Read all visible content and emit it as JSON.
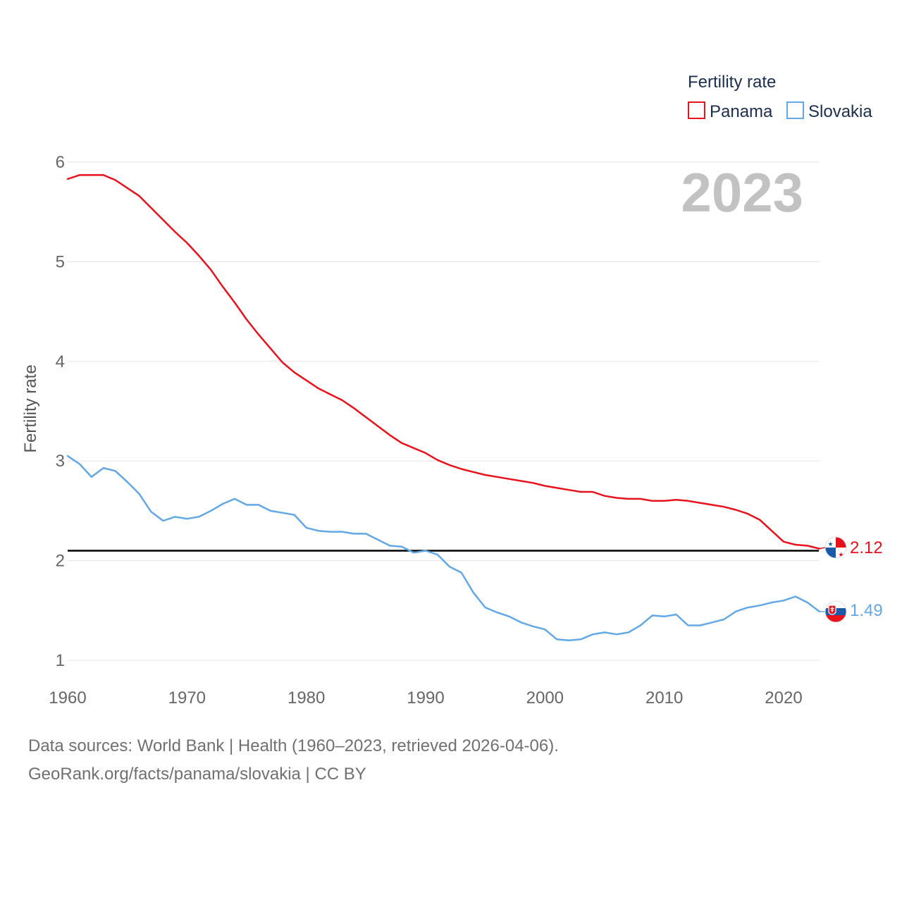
{
  "chart_data": {
    "type": "line",
    "ylabel": "Fertility rate",
    "ylim": [
      1,
      6.3
    ],
    "yticks": [
      1,
      2,
      3,
      4,
      5,
      6
    ],
    "xlim": [
      1960,
      2023
    ],
    "xticks": [
      1960,
      1970,
      1980,
      1990,
      2000,
      2010,
      2020
    ],
    "reference_line": 2.1,
    "year": "2023",
    "legend": {
      "title": "Fertility rate",
      "placement": "top-right"
    },
    "series": [
      {
        "name": "Panama",
        "color": "#e8121c",
        "end_label": "2.12",
        "flag_icon": "panama-flag-icon",
        "x": [
          1960,
          1961,
          1962,
          1963,
          1964,
          1965,
          1966,
          1967,
          1968,
          1969,
          1970,
          1971,
          1972,
          1973,
          1974,
          1975,
          1976,
          1977,
          1978,
          1979,
          1980,
          1981,
          1982,
          1983,
          1984,
          1985,
          1986,
          1987,
          1988,
          1989,
          1990,
          1991,
          1992,
          1993,
          1994,
          1995,
          1996,
          1997,
          1998,
          1999,
          2000,
          2001,
          2002,
          2003,
          2004,
          2005,
          2006,
          2007,
          2008,
          2009,
          2010,
          2011,
          2012,
          2013,
          2014,
          2015,
          2016,
          2017,
          2018,
          2019,
          2020,
          2021,
          2022,
          2023
        ],
        "values": [
          5.83,
          5.87,
          5.87,
          5.87,
          5.82,
          5.74,
          5.66,
          5.54,
          5.42,
          5.3,
          5.19,
          5.06,
          4.92,
          4.75,
          4.59,
          4.42,
          4.27,
          4.13,
          3.99,
          3.89,
          3.81,
          3.73,
          3.67,
          3.61,
          3.53,
          3.44,
          3.35,
          3.26,
          3.18,
          3.13,
          3.08,
          3.01,
          2.96,
          2.92,
          2.89,
          2.86,
          2.84,
          2.82,
          2.8,
          2.78,
          2.75,
          2.73,
          2.71,
          2.69,
          2.69,
          2.65,
          2.63,
          2.62,
          2.62,
          2.6,
          2.6,
          2.61,
          2.6,
          2.58,
          2.56,
          2.54,
          2.51,
          2.47,
          2.41,
          2.3,
          2.19,
          2.16,
          2.15,
          2.12
        ]
      },
      {
        "name": "Slovakia",
        "color": "#63a8e6",
        "end_label": "1.49",
        "flag_icon": "slovakia-flag-icon",
        "x": [
          1960,
          1961,
          1962,
          1963,
          1964,
          1965,
          1966,
          1967,
          1968,
          1969,
          1970,
          1971,
          1972,
          1973,
          1974,
          1975,
          1976,
          1977,
          1978,
          1979,
          1980,
          1981,
          1982,
          1983,
          1984,
          1985,
          1986,
          1987,
          1988,
          1989,
          1990,
          1991,
          1992,
          1993,
          1994,
          1995,
          1996,
          1997,
          1998,
          1999,
          2000,
          2001,
          2002,
          2003,
          2004,
          2005,
          2006,
          2007,
          2008,
          2009,
          2010,
          2011,
          2012,
          2013,
          2014,
          2015,
          2016,
          2017,
          2018,
          2019,
          2020,
          2021,
          2022,
          2023
        ],
        "values": [
          3.05,
          2.97,
          2.84,
          2.93,
          2.9,
          2.79,
          2.67,
          2.49,
          2.4,
          2.44,
          2.42,
          2.44,
          2.5,
          2.57,
          2.62,
          2.56,
          2.56,
          2.5,
          2.48,
          2.46,
          2.33,
          2.3,
          2.29,
          2.29,
          2.27,
          2.27,
          2.21,
          2.15,
          2.14,
          2.08,
          2.1,
          2.06,
          1.94,
          1.88,
          1.68,
          1.53,
          1.48,
          1.44,
          1.38,
          1.34,
          1.31,
          1.21,
          1.2,
          1.21,
          1.26,
          1.28,
          1.26,
          1.28,
          1.35,
          1.45,
          1.44,
          1.46,
          1.35,
          1.35,
          1.38,
          1.41,
          1.49,
          1.53,
          1.55,
          1.58,
          1.6,
          1.64,
          1.58,
          1.49
        ]
      }
    ]
  },
  "source": {
    "line1": "Data sources: World Bank | Health (1960–2023, retrieved 2026-04-06).",
    "line2": "GeoRank.org/facts/panama/slovakia | CC BY"
  }
}
